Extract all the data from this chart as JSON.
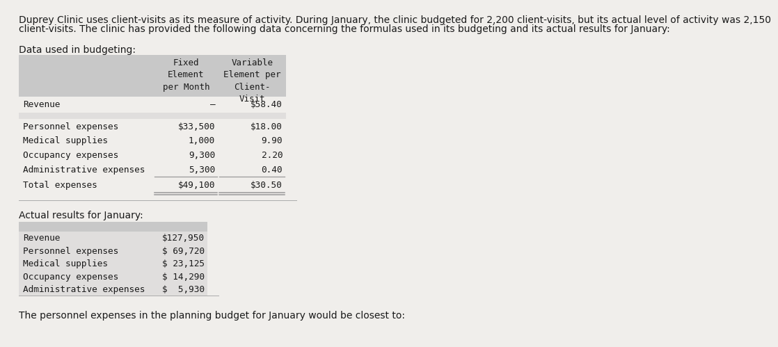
{
  "bg_color": "#f0eeeb",
  "text_color": "#1a1a1a",
  "intro_text_line1": "Duprey Clinic uses client-visits as its measure of activity. During January, the clinic budgeted for 2,200 client-visits, but its actual level of activity was 2,150",
  "intro_text_line2": "client-visits. The clinic has provided the following data concerning the formulas used in its budgeting and its actual results for January:",
  "section1_label": "Data used in budgeting:",
  "table1_header_bg": "#c8c8c8",
  "table1_row_bg_white": "#f0eeeb",
  "table1_row_bg_gray": "#e0dedd",
  "col2_header": "Fixed\nElement\nper Month",
  "col3_header": "Variable\nElement per\nClient-\nVisit",
  "table1_rows": [
    [
      "Revenue",
      "–",
      "$58.40",
      "white"
    ],
    [
      "",
      "",
      "",
      "gray"
    ],
    [
      "Personnel expenses",
      "$33,500",
      "$18.00",
      "white"
    ],
    [
      "Medical supplies",
      "1,000",
      "9.90",
      "white"
    ],
    [
      "Occupancy expenses",
      "9,300",
      "2.20",
      "white"
    ],
    [
      "Administrative expenses",
      "5,300",
      "0.40",
      "white"
    ],
    [
      "Total expenses",
      "$49,100",
      "$30.50",
      "white"
    ]
  ],
  "section2_label": "Actual results for January:",
  "table2_header_bg": "#c8c8c8",
  "table2_row_bg": "#e0dedd",
  "table2_rows": [
    [
      "Revenue",
      "$127,950"
    ],
    [
      "Personnel expenses",
      "$ 69,720"
    ],
    [
      "Medical supplies",
      "$ 23,125"
    ],
    [
      "Occupancy expenses",
      "$ 14,290"
    ],
    [
      "Administrative expenses",
      "$  5,930"
    ]
  ],
  "footer_text": "The personnel expenses in the planning budget for January would be closest to:",
  "monospace_font": "DejaVu Sans Mono",
  "sans_font": "DejaVu Sans",
  "line_color": "#999999",
  "sep_line_color": "#aaaaaa"
}
